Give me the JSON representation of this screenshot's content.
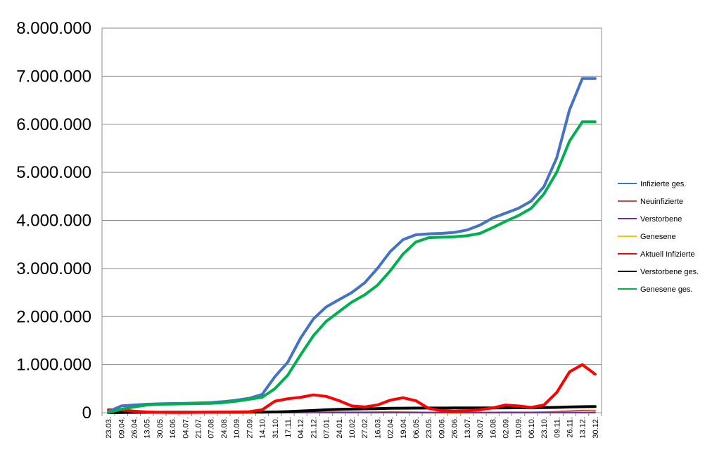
{
  "chart_data": {
    "type": "line",
    "title": "",
    "xlabel": "",
    "ylabel": "",
    "ylim": [
      0,
      8000000
    ],
    "yticks": [
      0,
      1000000,
      2000000,
      3000000,
      4000000,
      5000000,
      6000000,
      7000000,
      8000000
    ],
    "ytick_labels": [
      "0",
      "1.000.000",
      "2.000.000",
      "3.000.000",
      "4.000.000",
      "5.000.000",
      "6.000.000",
      "7.000.000",
      "8.000.000"
    ],
    "categories": [
      "23.03.",
      "09.04.",
      "26.04.",
      "13.05.",
      "30.05.",
      "16.06.",
      "04.07.",
      "21.07.",
      "07.08.",
      "24.08.",
      "10.09.",
      "27.09.",
      "14.10.",
      "31.10.",
      "17.11.",
      "04.12.",
      "21.12.",
      "07.01.",
      "24.01.",
      "10.02.",
      "27.02.",
      "16.03.",
      "02.04.",
      "19.04.",
      "06.05.",
      "23.05.",
      "09.06.",
      "26.06.",
      "13.07.",
      "30.07.",
      "16.08.",
      "02.09.",
      "19.09.",
      "06.10.",
      "23.10.",
      "09.11.",
      "26.11.",
      "13.12.",
      "30.12."
    ],
    "grid": true,
    "legend_position": "right",
    "series": [
      {
        "name": "Infizierte ges.",
        "color": "#4472C4",
        "values": [
          20000,
          140000,
          160000,
          175000,
          185000,
          190000,
          195000,
          200000,
          210000,
          230000,
          260000,
          300000,
          380000,
          750000,
          1050000,
          1550000,
          1950000,
          2200000,
          2350000,
          2500000,
          2700000,
          3000000,
          3350000,
          3600000,
          3700000,
          3720000,
          3730000,
          3750000,
          3800000,
          3900000,
          4050000,
          4150000,
          4250000,
          4400000,
          4700000,
          5300000,
          6300000,
          6950000,
          6950000
        ]
      },
      {
        "name": "Neuinfizierte",
        "color": "#C0504D",
        "values": [
          5000,
          4000,
          2000,
          1000,
          500,
          500,
          500,
          600,
          800,
          1000,
          1500,
          3000,
          8000,
          12000,
          15000,
          18000,
          15000,
          10000,
          8000,
          7000,
          8000,
          12000,
          15000,
          12000,
          6000,
          3000,
          2000,
          2000,
          2500,
          3000,
          5000,
          7000,
          6000,
          6000,
          10000,
          20000,
          35000,
          45000,
          35000
        ]
      },
      {
        "name": "Verstorbene",
        "color": "#7030A0",
        "values": [
          10,
          100,
          150,
          100,
          60,
          40,
          30,
          20,
          15,
          15,
          20,
          30,
          80,
          250,
          500,
          700,
          900,
          700,
          400,
          250,
          200,
          250,
          300,
          250,
          150,
          80,
          50,
          40,
          40,
          50,
          80,
          120,
          100,
          90,
          120,
          250,
          450,
          500,
          450
        ]
      },
      {
        "name": "Genesene",
        "color": "#FFC000",
        "values": [
          1000,
          4000,
          3000,
          1500,
          800,
          500,
          500,
          500,
          600,
          800,
          1000,
          2000,
          4000,
          9000,
          13000,
          17000,
          16000,
          12000,
          9000,
          7000,
          7500,
          10000,
          13000,
          13000,
          8000,
          4000,
          2500,
          2000,
          2000,
          2500,
          4000,
          6000,
          6500,
          6000,
          7000,
          15000,
          25000,
          40000,
          42000
        ]
      },
      {
        "name": "Aktuell Infizierte",
        "color": "#FF0000",
        "values": [
          60000,
          60000,
          30000,
          15000,
          8000,
          5000,
          5000,
          7000,
          10000,
          13000,
          15000,
          20000,
          60000,
          240000,
          290000,
          320000,
          370000,
          340000,
          250000,
          140000,
          120000,
          160000,
          260000,
          310000,
          250000,
          90000,
          40000,
          30000,
          40000,
          60000,
          100000,
          160000,
          140000,
          110000,
          160000,
          420000,
          850000,
          1000000,
          800000
        ]
      },
      {
        "name": "Verstorbene ges.",
        "color": "#000000",
        "values": [
          100,
          3000,
          6000,
          8000,
          8700,
          9000,
          9100,
          9200,
          9300,
          9400,
          9500,
          9700,
          10500,
          14000,
          22000,
          35000,
          45000,
          60000,
          70000,
          75000,
          80000,
          85000,
          90000,
          93000,
          95000,
          96000,
          97000,
          98000,
          98500,
          99000,
          99500,
          100500,
          102000,
          103000,
          105000,
          110000,
          118000,
          125000,
          128000
        ]
      },
      {
        "name": "Genesene ges.",
        "color": "#00B050",
        "values": [
          5000,
          70000,
          120000,
          160000,
          175000,
          180000,
          185000,
          190000,
          195000,
          210000,
          240000,
          280000,
          320000,
          500000,
          780000,
          1200000,
          1600000,
          1900000,
          2100000,
          2300000,
          2450000,
          2650000,
          2950000,
          3300000,
          3550000,
          3640000,
          3650000,
          3660000,
          3680000,
          3730000,
          3850000,
          3980000,
          4100000,
          4250000,
          4550000,
          5000000,
          5650000,
          6050000,
          6050000
        ]
      }
    ]
  }
}
